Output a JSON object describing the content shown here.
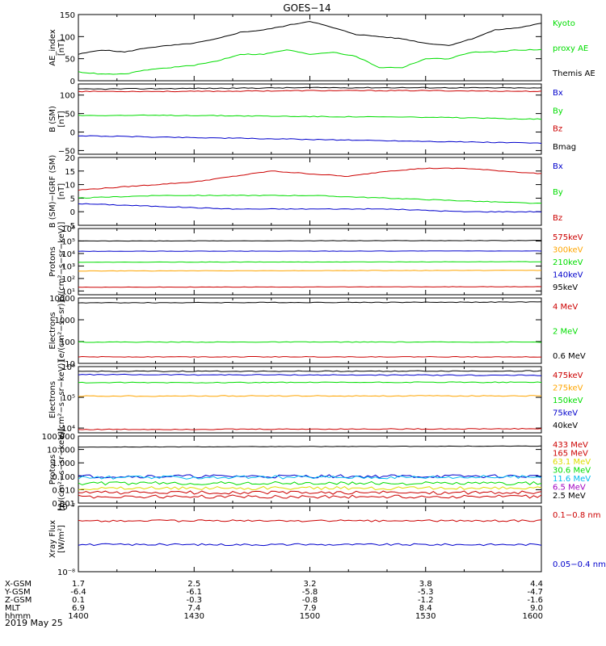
{
  "title": "GOES−14",
  "date_label": "2019 May 25",
  "colors": {
    "black": "#000000",
    "red": "#cc0000",
    "green": "#00dd00",
    "blue": "#0000cc",
    "orange": "#ffa500",
    "yellow": "#dddd00",
    "cyan": "#00bbee",
    "purple": "#a000c0"
  },
  "ephemeris": {
    "rows": [
      {
        "label": "X-GSM",
        "values": [
          "1.7",
          "2.5",
          "3.2",
          "3.8",
          "4.4"
        ]
      },
      {
        "label": "Y-GSM",
        "values": [
          "-6.4",
          "-6.1",
          "-5.8",
          "-5.3",
          "-4.7"
        ]
      },
      {
        "label": "Z-GSM",
        "values": [
          "0.1",
          "-0.3",
          "-0.8",
          "-1.2",
          "-1.6"
        ]
      },
      {
        "label": "MLT",
        "values": [
          "6.9",
          "7.4",
          "7.9",
          "8.4",
          "9.0"
        ]
      },
      {
        "label": "hhmm",
        "values": [
          "1400",
          "1430",
          "1500",
          "1530",
          "1600"
        ]
      }
    ]
  },
  "chart_data": [
    {
      "type": "line",
      "id": "ae",
      "ylabel": [
        "AE_index",
        "[nT]"
      ],
      "ylim": [
        0,
        150
      ],
      "yticks": [
        {
          "v": 0,
          "t": "0"
        },
        {
          "v": 50,
          "t": "50"
        },
        {
          "v": 100,
          "t": "100"
        },
        {
          "v": 150,
          "t": "150"
        }
      ],
      "legend": [
        {
          "text": "Kyoto",
          "color": "green"
        },
        {
          "text": "proxy AE",
          "color": "green"
        },
        {
          "text": "Themis AE",
          "color": "black"
        }
      ],
      "series": [
        {
          "name": "Themis AE",
          "color": "black",
          "x": [
            0,
            3,
            6,
            9,
            12,
            15,
            18,
            21,
            24,
            27,
            30,
            33,
            36,
            39,
            42,
            45,
            48,
            51,
            54,
            57,
            60
          ],
          "y": [
            60,
            70,
            65,
            75,
            80,
            85,
            95,
            110,
            115,
            125,
            135,
            120,
            105,
            100,
            95,
            85,
            80,
            95,
            115,
            120,
            130
          ]
        },
        {
          "name": "Kyoto proxy AE",
          "color": "green",
          "x": [
            0,
            3,
            6,
            9,
            12,
            15,
            18,
            21,
            24,
            27,
            30,
            33,
            36,
            39,
            42,
            45,
            48,
            51,
            54,
            57,
            60
          ],
          "y": [
            20,
            15,
            15,
            25,
            30,
            35,
            45,
            60,
            60,
            70,
            60,
            65,
            55,
            30,
            30,
            50,
            50,
            65,
            65,
            70,
            70
          ]
        }
      ]
    },
    {
      "type": "line",
      "id": "bsm",
      "ylabel": [
        "B (SM)",
        "[nT]"
      ],
      "ylim": [
        -60,
        130
      ],
      "yticks": [
        {
          "v": -50,
          "t": "−50"
        },
        {
          "v": 0,
          "t": "0"
        },
        {
          "v": 50,
          "t": "50"
        },
        {
          "v": 100,
          "t": "100"
        }
      ],
      "legend": [
        {
          "text": "Bx",
          "color": "blue"
        },
        {
          "text": "By",
          "color": "green"
        },
        {
          "text": "Bz",
          "color": "red"
        },
        {
          "text": "Bmag",
          "color": "black"
        }
      ],
      "series": [
        {
          "name": "Bmag",
          "color": "black",
          "x": [
            0,
            15,
            30,
            45,
            60
          ],
          "y": [
            116,
            118,
            120,
            120,
            119
          ]
        },
        {
          "name": "Bz",
          "color": "red",
          "x": [
            0,
            15,
            30,
            45,
            60
          ],
          "y": [
            110,
            110,
            112,
            112,
            110
          ]
        },
        {
          "name": "By",
          "color": "green",
          "x": [
            0,
            15,
            30,
            45,
            60
          ],
          "y": [
            45,
            45,
            42,
            40,
            35
          ]
        },
        {
          "name": "Bx",
          "color": "blue",
          "x": [
            0,
            15,
            30,
            45,
            60
          ],
          "y": [
            -10,
            -15,
            -20,
            -25,
            -30
          ]
        }
      ]
    },
    {
      "type": "line",
      "id": "bdiff",
      "ylabel": [
        "B (SM)−IGRF (SM)",
        "[nT]"
      ],
      "ylim": [
        -5,
        20
      ],
      "yticks": [
        {
          "v": -5,
          "t": "−5"
        },
        {
          "v": 0,
          "t": "0"
        },
        {
          "v": 5,
          "t": "5"
        },
        {
          "v": 10,
          "t": "10"
        },
        {
          "v": 15,
          "t": "15"
        },
        {
          "v": 20,
          "t": "20"
        }
      ],
      "legend": [
        {
          "text": "Bx",
          "color": "blue"
        },
        {
          "text": "By",
          "color": "green"
        },
        {
          "text": "Bz",
          "color": "red"
        }
      ],
      "series": [
        {
          "name": "Bz",
          "color": "red",
          "x": [
            0,
            5,
            10,
            15,
            20,
            25,
            30,
            35,
            40,
            45,
            50,
            55,
            60
          ],
          "y": [
            8,
            9,
            10,
            11,
            13,
            15,
            14,
            13,
            15,
            16,
            16,
            15,
            14
          ]
        },
        {
          "name": "By",
          "color": "green",
          "x": [
            0,
            10,
            20,
            30,
            40,
            50,
            60
          ],
          "y": [
            5,
            6,
            6,
            6,
            5,
            4,
            3
          ]
        },
        {
          "name": "Bx",
          "color": "blue",
          "x": [
            0,
            10,
            20,
            30,
            40,
            50,
            60
          ],
          "y": [
            3,
            2,
            1,
            1,
            1,
            0,
            0
          ]
        }
      ]
    },
    {
      "type": "line",
      "id": "protons_low",
      "log": true,
      "ylabel": [
        "Protons",
        "p/(cm²−s−sr−keV)]"
      ],
      "ylim": [
        5,
        1000000
      ],
      "yticks": [
        {
          "v": 10,
          "t": "10¹"
        },
        {
          "v": 100,
          "t": "10²"
        },
        {
          "v": 1000,
          "t": "10³"
        },
        {
          "v": 10000,
          "t": "10⁴"
        },
        {
          "v": 100000,
          "t": "10⁵"
        },
        {
          "v": 1000000,
          "t": "10⁶"
        }
      ],
      "legend": [
        {
          "text": "575keV",
          "color": "red"
        },
        {
          "text": "300keV",
          "color": "orange"
        },
        {
          "text": "210keV",
          "color": "green"
        },
        {
          "text": "140keV",
          "color": "blue"
        },
        {
          "text": "95keV",
          "color": "black"
        }
      ],
      "series": [
        {
          "name": "95keV",
          "color": "black",
          "x": [
            0,
            60
          ],
          "y": [
            100000,
            110000
          ]
        },
        {
          "name": "140keV",
          "color": "blue",
          "x": [
            0,
            60
          ],
          "y": [
            15000,
            16000
          ]
        },
        {
          "name": "210keV",
          "color": "green",
          "x": [
            0,
            60
          ],
          "y": [
            2000,
            2200
          ]
        },
        {
          "name": "300keV",
          "color": "orange",
          "x": [
            0,
            60
          ],
          "y": [
            400,
            450
          ]
        },
        {
          "name": "575keV",
          "color": "red",
          "x": [
            0,
            60
          ],
          "y": [
            20,
            22
          ]
        }
      ]
    },
    {
      "type": "line",
      "id": "electrons_mev",
      "log": true,
      "ylabel": [
        "Electrons",
        "[e/(cm²−s−sr)]"
      ],
      "ylim": [
        10,
        10000
      ],
      "yticks": [
        {
          "v": 10,
          "t": "10"
        },
        {
          "v": 100,
          "t": "100"
        },
        {
          "v": 1000,
          "t": "1000"
        },
        {
          "v": 10000,
          "t": "10000"
        }
      ],
      "legend": [
        {
          "text": "4 MeV",
          "color": "red"
        },
        {
          "text": "2 MeV",
          "color": "green"
        },
        {
          "text": "0.6 MeV",
          "color": "black"
        }
      ],
      "series": [
        {
          "name": "0.6 MeV",
          "color": "black",
          "x": [
            0,
            60
          ],
          "y": [
            6000,
            6500
          ]
        },
        {
          "name": "2 MeV",
          "color": "green",
          "x": [
            0,
            60
          ],
          "y": [
            95,
            95
          ]
        },
        {
          "name": "4 MeV",
          "color": "red",
          "x": [
            0,
            60
          ],
          "y": [
            20,
            20
          ]
        }
      ]
    },
    {
      "type": "line",
      "id": "electrons_kev",
      "log": true,
      "ylabel": [
        "Electrons",
        "e/(cm²−s−sr−keV)]"
      ],
      "ylim": [
        7000,
        1000000
      ],
      "yticks": [
        {
          "v": 10000,
          "t": "10⁴"
        },
        {
          "v": 100000,
          "t": "10⁵"
        },
        {
          "v": 1000000,
          "t": "10⁶"
        }
      ],
      "legend": [
        {
          "text": "475keV",
          "color": "red"
        },
        {
          "text": "275keV",
          "color": "orange"
        },
        {
          "text": "150keV",
          "color": "green"
        },
        {
          "text": "75keV",
          "color": "blue"
        },
        {
          "text": "40keV",
          "color": "black"
        }
      ],
      "series": [
        {
          "name": "40keV",
          "color": "black",
          "x": [
            0,
            60
          ],
          "y": [
            700000,
            720000
          ]
        },
        {
          "name": "75keV",
          "color": "blue",
          "x": [
            0,
            60
          ],
          "y": [
            550000,
            520000
          ]
        },
        {
          "name": "150keV",
          "color": "green",
          "x": [
            0,
            60
          ],
          "y": [
            300000,
            310000
          ]
        },
        {
          "name": "275keV",
          "color": "orange",
          "x": [
            0,
            60
          ],
          "y": [
            110000,
            112000
          ]
        },
        {
          "name": "475keV",
          "color": "red",
          "x": [
            0,
            60
          ],
          "y": [
            9000,
            9500
          ]
        }
      ]
    },
    {
      "type": "line",
      "id": "protons_mev",
      "log": true,
      "ylabel": [
        "Protons",
        "[p/(cm²−s−sr−keV)]"
      ],
      "ylim": [
        0.001,
        100
      ],
      "yticks": [
        {
          "v": 0.001,
          "t": "0.001"
        },
        {
          "v": 0.01,
          "t": "0.010"
        },
        {
          "v": 0.1,
          "t": "0.100"
        },
        {
          "v": 1,
          "t": "1.000"
        },
        {
          "v": 10,
          "t": "10.000"
        },
        {
          "v": 100,
          "t": "100.000"
        }
      ],
      "legend": [
        {
          "text": "433 MeV",
          "color": "red"
        },
        {
          "text": "165 MeV",
          "color": "red"
        },
        {
          "text": "63.1 MeV",
          "color": "yellow"
        },
        {
          "text": "30.6 MeV",
          "color": "green"
        },
        {
          "text": "11.6 MeV",
          "color": "cyan"
        },
        {
          "text": "6.5 MeV",
          "color": "purple"
        },
        {
          "text": "2.5 MeV",
          "color": "black"
        }
      ],
      "series": [
        {
          "name": "2.5 MeV",
          "color": "black",
          "x": [
            0,
            60
          ],
          "y": [
            15,
            18
          ]
        },
        {
          "name": "6.5 MeV",
          "color": "blue",
          "x": [
            0,
            60
          ],
          "y": [
            0.1,
            0.1
          ]
        },
        {
          "name": "11.6 MeV",
          "color": "cyan",
          "x": [
            0,
            60
          ],
          "y": [
            0.08,
            0.09
          ]
        },
        {
          "name": "30.6 MeV",
          "color": "green",
          "x": [
            0,
            60
          ],
          "y": [
            0.03,
            0.03
          ]
        },
        {
          "name": "63.1 MeV",
          "color": "yellow",
          "x": [
            0,
            60
          ],
          "y": [
            0.013,
            0.013
          ]
        },
        {
          "name": "165 MeV",
          "color": "red",
          "x": [
            0,
            60
          ],
          "y": [
            0.006,
            0.006
          ]
        },
        {
          "name": "433 MeV",
          "color": "red",
          "x": [
            0,
            60
          ],
          "y": [
            0.003,
            0.003
          ]
        }
      ]
    },
    {
      "type": "line",
      "id": "xray",
      "log": true,
      "ylabel": [
        "Xray Flux",
        "[W/m²]"
      ],
      "ylim": [
        1e-08,
        1e-07
      ],
      "yticks": [
        {
          "v": 1e-08,
          "t": "10⁻⁸"
        },
        {
          "v": 1e-07,
          "t": "10⁻⁷"
        }
      ],
      "legend": [
        {
          "text": "0.1−0.8 nm",
          "color": "red"
        },
        {
          "text": "0.05−0.4 nm",
          "color": "blue"
        }
      ],
      "series": [
        {
          "name": "0.1−0.8 nm",
          "color": "red",
          "x": [
            0,
            60
          ],
          "y": [
            6e-08,
            6e-08
          ]
        },
        {
          "name": "0.05−0.4 nm",
          "color": "blue",
          "x": [
            0,
            60
          ],
          "y": [
            2.6e-08,
            2.6e-08
          ]
        }
      ]
    }
  ]
}
